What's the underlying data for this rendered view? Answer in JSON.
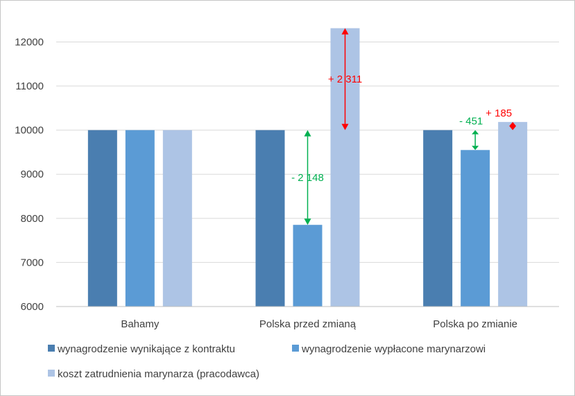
{
  "chart_data": {
    "type": "bar",
    "categories": [
      "Bahamy",
      "Polska przed zmianą",
      "Polska po zmianie"
    ],
    "series": [
      {
        "name": "wynagrodzenie wynikające z kontraktu",
        "values": [
          10000,
          10000,
          10000
        ],
        "color": "#4a7eb0"
      },
      {
        "name": "wynagrodzenie wypłacone marynarzowi",
        "values": [
          10000,
          7852,
          9549
        ],
        "color": "#5b9bd5"
      },
      {
        "name": "koszt zatrudnienia marynarza (pracodawca)",
        "values": [
          10000,
          12311,
          10185
        ],
        "color": "#adc4e5"
      }
    ],
    "ylim": [
      6000,
      12400
    ],
    "yticks": [
      6000,
      7000,
      8000,
      9000,
      10000,
      11000,
      12000
    ],
    "grid": true,
    "legend_position": "bottom",
    "annotations": [
      {
        "label": "+ 2 311",
        "category": "Polska przed zmianą",
        "series_index": 2,
        "from": 10000,
        "to": 12311,
        "color": "#ff0000"
      },
      {
        "label": "- 2 148",
        "category": "Polska przed zmianą",
        "series_index": 1,
        "from": 7852,
        "to": 10000,
        "color": "#00b050"
      },
      {
        "label": "- 451",
        "category": "Polska po zmianie",
        "series_index": 1,
        "from": 9549,
        "to": 10000,
        "color": "#00b050"
      },
      {
        "label": "+ 185",
        "category": "Polska po zmianie",
        "series_index": 2,
        "from": 10000,
        "to": 10185,
        "color": "#ff0000"
      }
    ]
  }
}
